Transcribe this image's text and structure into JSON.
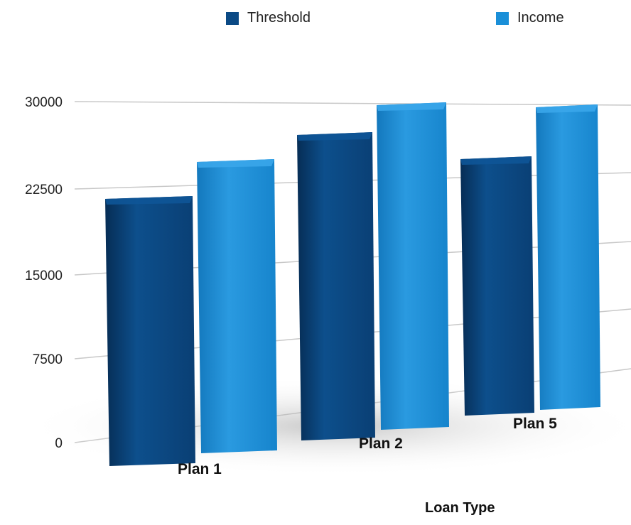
{
  "chart_data": {
    "type": "bar",
    "categories": [
      "Plan 1",
      "Plan 2",
      "Plan 5"
    ],
    "series": [
      {
        "name": "Threshold",
        "values": [
          22015,
          27295,
          25000
        ],
        "color": "#0b4a85"
      },
      {
        "name": "Income",
        "values": [
          25000,
          29000,
          27500
        ],
        "color": "#1a8fd8"
      }
    ],
    "xlabel": "Loan Type",
    "ylabel": "",
    "ylim": [
      0,
      30000
    ],
    "yticks": [
      0,
      7500,
      15000,
      22500,
      30000
    ],
    "grid": true,
    "legend_position": "top"
  }
}
